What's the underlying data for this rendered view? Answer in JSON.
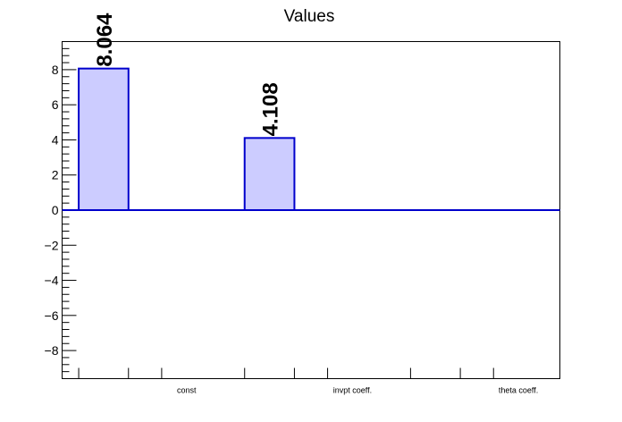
{
  "chart_data": {
    "type": "bar",
    "title": "Values",
    "categories": [
      "const",
      "invpt coeff.",
      "theta coeff."
    ],
    "values": [
      8.064,
      4.108,
      0
    ],
    "value_labels": [
      "8.064",
      "4.108",
      ""
    ],
    "ylim": [
      -9.6,
      9.6
    ],
    "yticks": [
      -8,
      -6,
      -4,
      -2,
      0,
      2,
      4,
      6,
      8
    ],
    "ytick_labels": [
      "−8",
      "−6",
      "−4",
      "−2",
      "0",
      "2",
      "4",
      "6",
      "8"
    ],
    "grid": false,
    "colors": {
      "bar_fill": "#ccccff",
      "bar_stroke": "#0000cc",
      "axis": "#000000"
    }
  }
}
